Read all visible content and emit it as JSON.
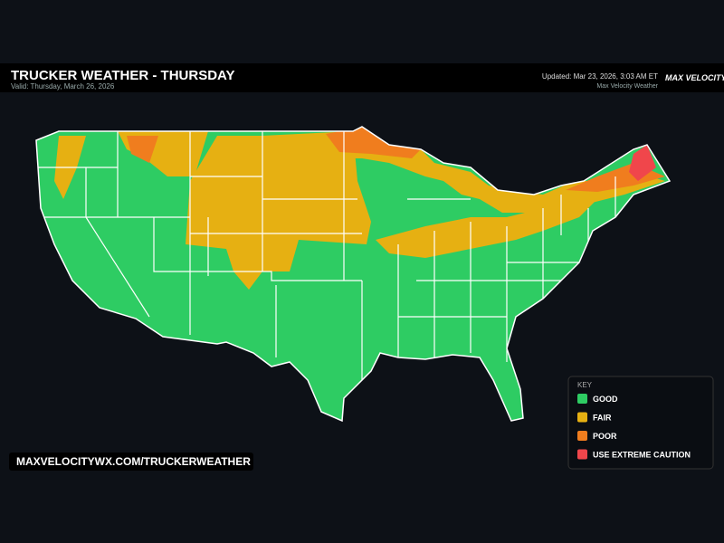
{
  "header": {
    "title": "TRUCKER WEATHER - THURSDAY",
    "valid": "Valid: Thursday, March 26, 2026",
    "updated": "Updated: Mar 23, 2026, 3:03 AM ET",
    "source": "Max Velocity Weather",
    "logo": "MAX VELOCITY"
  },
  "footer": {
    "url": "MAXVELOCITYWX.COM/TRUCKERWEATHER"
  },
  "key": {
    "title": "KEY",
    "items": [
      {
        "label": "GOOD",
        "color": "#2ecc63"
      },
      {
        "label": "FAIR",
        "color": "#e6b012"
      },
      {
        "label": "POOR",
        "color": "#f07d1e"
      },
      {
        "label": "USE EXTREME CAUTION",
        "color": "#f0464b"
      }
    ]
  }
}
